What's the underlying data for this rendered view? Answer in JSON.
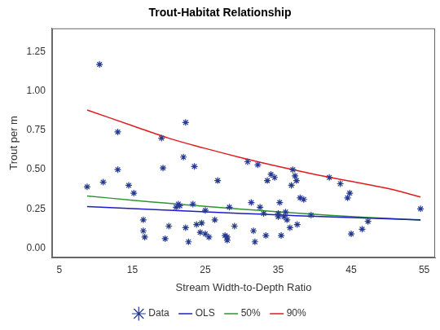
{
  "chart_data": {
    "type": "scatter",
    "title": "Trout-Habitat Relationship",
    "x_label": "Stream Width-to-Depth Ratio",
    "y_label": "Trout per m",
    "xlim": [
      4,
      56.5
    ],
    "ylim": [
      -0.06,
      1.4
    ],
    "xticks": [
      5,
      15,
      25,
      35,
      45,
      55
    ],
    "yticks": [
      {
        "value": 0,
        "label": "0.00"
      },
      {
        "value": 0.25,
        "label": "0.25"
      },
      {
        "value": 0.5,
        "label": "0.50"
      },
      {
        "value": 0.75,
        "label": "0.75"
      },
      {
        "value": 1,
        "label": "1.00"
      },
      {
        "value": 1.25,
        "label": "1.25"
      }
    ],
    "grid": false,
    "legend": "bottom",
    "series": [
      {
        "name": "Data",
        "type": "scatter",
        "marker": "star",
        "color": "#25398f",
        "x": [
          8.8,
          10.5,
          11,
          13,
          13,
          14.5,
          15.2,
          16.5,
          16.5,
          16.7,
          19,
          19.2,
          19.5,
          20,
          21,
          21.3,
          21.5,
          22,
          22.3,
          22.3,
          22.7,
          23.3,
          23.5,
          23.8,
          24.3,
          24.5,
          25,
          25,
          25.5,
          26.3,
          26.7,
          27.7,
          28,
          28,
          28.3,
          29,
          30.8,
          31.3,
          31.6,
          31.8,
          32.2,
          32.5,
          33,
          33.3,
          33.5,
          34,
          34.5,
          35,
          35,
          35.2,
          35.4,
          35.8,
          36,
          36.2,
          36.6,
          36.8,
          37,
          37.3,
          37.5,
          37.6,
          38,
          38.5,
          39.5,
          42,
          43.5,
          44.5,
          44.8,
          45,
          46.5,
          47.3,
          54.5
        ],
        "values": [
          0.39,
          1.17,
          0.42,
          0.74,
          0.5,
          0.4,
          0.35,
          0.18,
          0.11,
          0.07,
          0.7,
          0.51,
          0.06,
          0.14,
          0.26,
          0.28,
          0.27,
          0.58,
          0.8,
          0.13,
          0.04,
          0.28,
          0.52,
          0.15,
          0.1,
          0.16,
          0.24,
          0.09,
          0.07,
          0.18,
          0.43,
          0.08,
          0.07,
          0.05,
          0.26,
          0.14,
          0.55,
          0.29,
          0.11,
          0.04,
          0.53,
          0.26,
          0.22,
          0.08,
          0.43,
          0.47,
          0.45,
          0.22,
          0.2,
          0.29,
          0.08,
          0.2,
          0.23,
          0.18,
          0.13,
          0.4,
          0.5,
          0.46,
          0.43,
          0.15,
          0.32,
          0.31,
          0.21,
          0.45,
          0.41,
          0.32,
          0.35,
          0.09,
          0.12,
          0.17,
          0.25
        ]
      },
      {
        "name": "OLS",
        "type": "line",
        "line_style": "solid",
        "color": "#1c1cc8",
        "x": [
          8.8,
          15,
          20,
          25,
          30,
          35,
          40,
          45,
          50,
          54.5
        ],
        "values": [
          0.265,
          0.252,
          0.241,
          0.231,
          0.221,
          0.211,
          0.202,
          0.194,
          0.186,
          0.18
        ]
      },
      {
        "name": "50%",
        "type": "line",
        "line_style": "solid",
        "color": "#2e952e",
        "x": [
          8.8,
          15,
          20,
          25,
          30,
          35,
          40,
          45,
          50,
          54.5
        ],
        "values": [
          0.332,
          0.305,
          0.285,
          0.266,
          0.248,
          0.231,
          0.215,
          0.201,
          0.189,
          0.178
        ]
      },
      {
        "name": "90%",
        "type": "line",
        "line_style": "solid",
        "color": "#e31a1c",
        "x": [
          8.8,
          15,
          20,
          25,
          30,
          35,
          40,
          45,
          50,
          54.5
        ],
        "values": [
          0.88,
          0.78,
          0.7,
          0.635,
          0.575,
          0.52,
          0.47,
          0.425,
          0.38,
          0.325
        ]
      }
    ]
  }
}
